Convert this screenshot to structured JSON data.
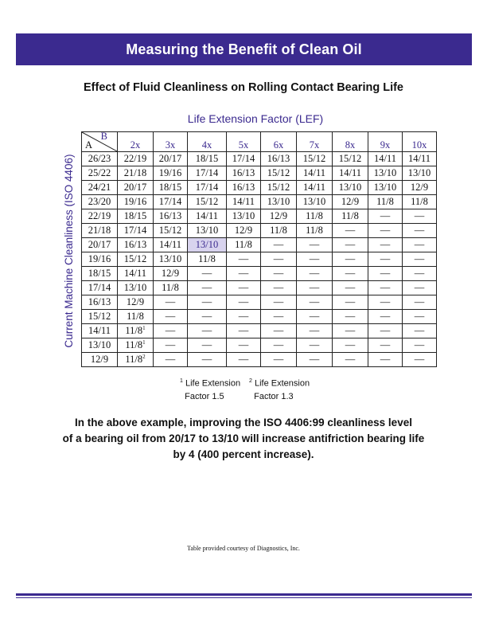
{
  "banner": {
    "title": "Measuring the Benefit of Clean Oil"
  },
  "subtitle": "Effect of Fluid Cleanliness on Rolling Contact Bearing Life",
  "lef_title": "Life Extension Factor (LEF)",
  "y_axis_label": "Current Machine Cleanliness (ISO 4406)",
  "table": {
    "corner_b": "B",
    "corner_a": "A",
    "headers": [
      "2x",
      "3x",
      "4x",
      "5x",
      "6x",
      "7x",
      "8x",
      "9x",
      "10x"
    ],
    "rows": [
      [
        "26/23",
        "22/19",
        "20/17",
        "18/15",
        "17/14",
        "16/13",
        "15/12",
        "15/12",
        "14/11",
        "14/11"
      ],
      [
        "25/22",
        "21/18",
        "19/16",
        "17/14",
        "16/13",
        "15/12",
        "14/11",
        "14/11",
        "13/10",
        "13/10"
      ],
      [
        "24/21",
        "20/17",
        "18/15",
        "17/14",
        "16/13",
        "15/12",
        "14/11",
        "13/10",
        "13/10",
        "12/9"
      ],
      [
        "23/20",
        "19/16",
        "17/14",
        "15/12",
        "14/11",
        "13/10",
        "13/10",
        "12/9",
        "11/8",
        "11/8"
      ],
      [
        "22/19",
        "18/15",
        "16/13",
        "14/11",
        "13/10",
        "12/9",
        "11/8",
        "11/8",
        "—",
        "—"
      ],
      [
        "21/18",
        "17/14",
        "15/12",
        "13/10",
        "12/9",
        "11/8",
        "11/8",
        "—",
        "—",
        "—"
      ],
      [
        "20/17",
        "16/13",
        "14/11",
        "13/10",
        "11/8",
        "—",
        "—",
        "—",
        "—",
        "—"
      ],
      [
        "19/16",
        "15/12",
        "13/10",
        "11/8",
        "—",
        "—",
        "—",
        "—",
        "—",
        "—"
      ],
      [
        "18/15",
        "14/11",
        "12/9",
        "—",
        "—",
        "—",
        "—",
        "—",
        "—",
        "—"
      ],
      [
        "17/14",
        "13/10",
        "11/8",
        "—",
        "—",
        "—",
        "—",
        "—",
        "—",
        "—"
      ],
      [
        "16/13",
        "12/9",
        "—",
        "—",
        "—",
        "—",
        "—",
        "—",
        "—",
        "—"
      ],
      [
        "15/12",
        "11/8",
        "—",
        "—",
        "—",
        "—",
        "—",
        "—",
        "—",
        "—"
      ],
      [
        "14/11",
        "11/8",
        "—",
        "—",
        "—",
        "—",
        "—",
        "—",
        "—",
        "—"
      ],
      [
        "13/10",
        "11/8",
        "—",
        "—",
        "—",
        "—",
        "—",
        "—",
        "—",
        "—"
      ],
      [
        "12/9",
        "11/8",
        "—",
        "—",
        "—",
        "—",
        "—",
        "—",
        "—",
        "—"
      ]
    ],
    "footnote_marks": {
      "12-1": "1",
      "13-1": "1",
      "14-1": "2"
    },
    "highlight_cell": "6-3"
  },
  "footnotes": [
    {
      "mark": "1",
      "line1": "Life Extension",
      "line2": "Factor 1.5"
    },
    {
      "mark": "2",
      "line1": "Life Extension",
      "line2": "Factor 1.3"
    }
  ],
  "example_text": [
    "In the above example, improving the ISO 4406:99 cleanliness level",
    "of a bearing oil from 20/17 to 13/10 will increase antifriction bearing life",
    "by 4 (400 percent increase)."
  ],
  "credit": "Table provided courtesy of Diagnostics, Inc.",
  "colors": {
    "brand": "#3b2a8f",
    "highlight": "#d8d3ee"
  }
}
